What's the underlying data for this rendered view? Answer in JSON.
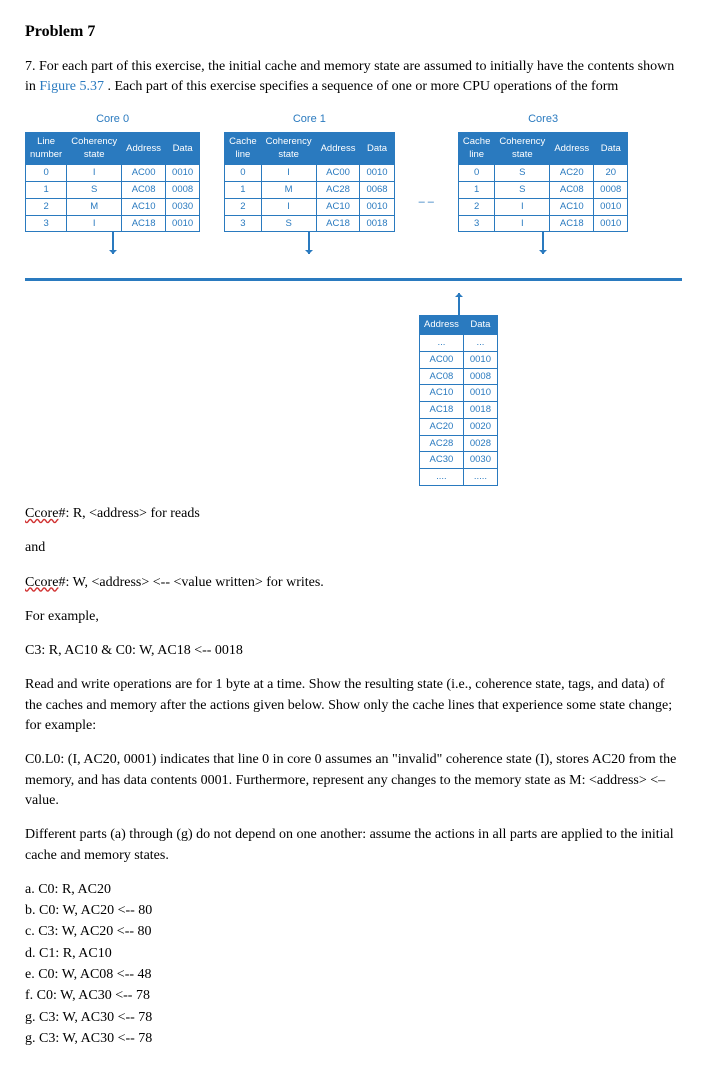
{
  "title": "Problem 7",
  "intro": "7. For each part of this exercise, the initial cache and memory state are assumed to initially have the contents shown in ",
  "intro_link": "Figure 5.37",
  "intro2": ". Each part of this exercise specifies a sequence of one or more CPU operations of the form",
  "cores": [
    {
      "name": "Core 0",
      "headers": [
        "Line number",
        "Coherency state",
        "Address",
        "Data"
      ],
      "rows": [
        [
          "0",
          "I",
          "AC00",
          "0010"
        ],
        [
          "1",
          "S",
          "AC08",
          "0008"
        ],
        [
          "2",
          "M",
          "AC10",
          "0030"
        ],
        [
          "3",
          "I",
          "AC18",
          "0010"
        ]
      ]
    },
    {
      "name": "Core 1",
      "headers": [
        "Cache line",
        "Coherency state",
        "Address",
        "Data"
      ],
      "rows": [
        [
          "0",
          "I",
          "AC00",
          "0010"
        ],
        [
          "1",
          "M",
          "AC28",
          "0068"
        ],
        [
          "2",
          "I",
          "AC10",
          "0010"
        ],
        [
          "3",
          "S",
          "AC18",
          "0018"
        ]
      ]
    },
    {
      "name": "Core3",
      "headers": [
        "Cache line",
        "Coherency state",
        "Address",
        "Data"
      ],
      "rows": [
        [
          "0",
          "S",
          "AC20",
          "20"
        ],
        [
          "1",
          "S",
          "AC08",
          "0008"
        ],
        [
          "2",
          "I",
          "AC10",
          "0010"
        ],
        [
          "3",
          "I",
          "AC18",
          "0010"
        ]
      ]
    }
  ],
  "memory": {
    "headers": [
      "Address",
      "Data"
    ],
    "rows": [
      [
        "...",
        "..."
      ],
      [
        "AC00",
        "0010"
      ],
      [
        "AC08",
        "0008"
      ],
      [
        "AC10",
        "0010"
      ],
      [
        "AC18",
        "0018"
      ],
      [
        "AC20",
        "0020"
      ],
      [
        "AC28",
        "0028"
      ],
      [
        "AC30",
        "0030"
      ],
      [
        "....",
        "....."
      ]
    ]
  },
  "lines": {
    "l1": "Ccore#: R, <address> for reads",
    "l1_wavy": "Ccore",
    "and": "and",
    "l2": "Ccore#: W, <address> <-- <value written> for writes.",
    "forex": "For example,",
    "ex": "C3: R, AC10 & C0: W, AC18 <-- 0018",
    "p1": "Read and write operations are for 1 byte at a time. Show the resulting state (i.e., coherence state, tags, and data) of the caches and memory after the actions given below. Show only the cache lines that experience some state change; for example:",
    "p2": "C0.L0: (I, AC20, 0001) indicates that line 0 in core 0 assumes an \"invalid\" coherence state (I), stores AC20 from the memory, and has data contents 0001. Furthermore, represent any changes to the memory state as M: <address> <– value.",
    "p3": "Different parts (a) through (g) do not depend on one another: assume the actions in all parts are applied to the initial cache and memory states."
  },
  "parts": [
    "a. C0: R, AC20",
    "b. C0: W, AC20 <-- 80",
    "c. C3: W, AC20 <-- 80",
    "d. C1: R, AC10",
    "e. C0: W, AC08 <-- 48",
    "f. C0: W, AC30 <-- 78",
    "g. C3: W, AC30 <-- 78",
    "g. C3: W, AC30 <-- 78"
  ],
  "colors": {
    "accent": "#2a7abf"
  }
}
